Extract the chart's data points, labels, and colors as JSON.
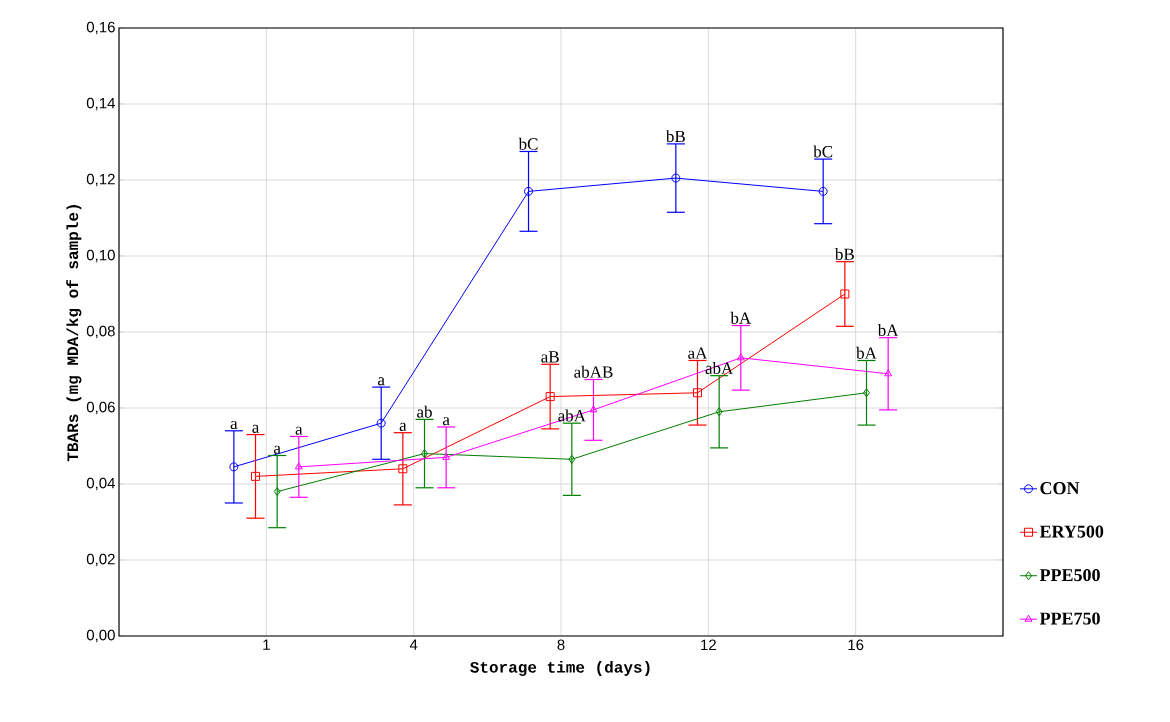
{
  "chart_data": {
    "type": "line",
    "xlabel": "Storage time (days)",
    "ylabel": "TBARs (mg MDA/kg of sample)",
    "categories": [
      "1",
      "4",
      "8",
      "12",
      "16"
    ],
    "series": [
      {
        "name": "CON",
        "color": "#0000ff",
        "marker": "circle",
        "values": [
          0.0445,
          0.056,
          0.117,
          0.1205,
          0.117
        ],
        "errors": [
          0.0095,
          0.0095,
          0.0105,
          0.009,
          0.0085
        ]
      },
      {
        "name": "ERY500",
        "color": "#ff0000",
        "marker": "square",
        "values": [
          0.042,
          0.044,
          0.063,
          0.064,
          0.09
        ],
        "errors": [
          0.011,
          0.0095,
          0.0085,
          0.0085,
          0.0085
        ]
      },
      {
        "name": "PPE500",
        "color": "#008000",
        "marker": "diamond",
        "values": [
          0.038,
          0.048,
          0.0465,
          0.059,
          0.064
        ],
        "errors": [
          0.0095,
          0.009,
          0.0095,
          0.0095,
          0.0085
        ]
      },
      {
        "name": "PPE750",
        "color": "#ff00ff",
        "marker": "triangle",
        "values": [
          0.0445,
          0.047,
          0.0595,
          0.0732,
          0.069
        ],
        "errors": [
          0.008,
          0.008,
          0.008,
          0.0085,
          0.0095
        ]
      }
    ],
    "ylim": [
      0,
      0.16
    ],
    "yticks": [
      {
        "value": 0,
        "label": "0,00"
      },
      {
        "value": 0.02,
        "label": "0,02"
      },
      {
        "value": 0.04,
        "label": "0,04"
      },
      {
        "value": 0.06,
        "label": "0,06"
      },
      {
        "value": 0.08,
        "label": "0,08"
      },
      {
        "value": 0.1,
        "label": "0,10"
      },
      {
        "value": 0.12,
        "label": "0,12"
      },
      {
        "value": 0.14,
        "label": "0,14"
      },
      {
        "value": 0.16,
        "label": "0,16"
      }
    ],
    "grid": true,
    "legend": "right",
    "line_style": "solid",
    "annotations": [
      "a",
      "a",
      "bC",
      "bB",
      "bC",
      "a",
      "a",
      "aB",
      "aA",
      "bB",
      "a",
      "ab",
      "abA",
      "abA",
      "bA",
      "a",
      "a",
      "abAB",
      "bA",
      "bA"
    ]
  }
}
